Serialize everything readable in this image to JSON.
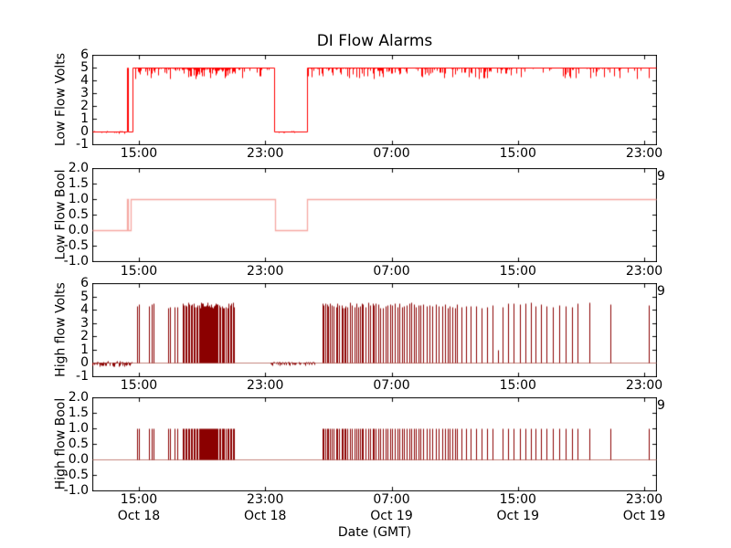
{
  "title": "DI Flow Alarms",
  "xlabel": "Date (GMT)",
  "clipped_date_char": "9",
  "x_tick_labels": [
    "15:00",
    "23:00",
    "07:00",
    "15:00",
    "23:00"
  ],
  "x_date_labels": [
    "Oct 18",
    "Oct 18",
    "Oct 19",
    "Oct 19",
    "Oct 19"
  ],
  "colors": {
    "red": "#ff0000",
    "light_red": "#f5a8a2",
    "dark_red": "#8b0000",
    "faded_dark_red": "#c4857e",
    "axis": "#000000"
  },
  "chart_data": [
    {
      "type": "line",
      "ylabel": "Low Flow Volts",
      "ylim": [
        -1,
        6
      ],
      "ytick_labels": [
        "6",
        "5",
        "4",
        "3",
        "2",
        "1",
        "0",
        "-1"
      ],
      "yticks": [
        6,
        5,
        4,
        3,
        2,
        1,
        0,
        -1
      ],
      "x_hours_range": [
        12.05,
        47.75
      ],
      "xticks_hours": [
        15,
        23,
        31,
        39,
        47
      ],
      "series": {
        "kind": "step",
        "color": "#ff0000",
        "lw": 1,
        "steps": [
          [
            12.05,
            0
          ],
          [
            14.25,
            5
          ],
          [
            14.33,
            0
          ],
          [
            14.62,
            5
          ],
          [
            23.55,
            0
          ],
          [
            25.62,
            5
          ]
        ],
        "end": 47.75,
        "zero_noise": [
          [
            12.1,
            14.2,
            0.14
          ],
          [
            23.68,
            25.5,
            0.09
          ]
        ],
        "high_noise": {
          "level": 5,
          "regions": [
            [
              14.72,
              17.8,
              0.5
            ],
            [
              17.8,
              21.1,
              0.85
            ],
            [
              21.1,
              23.45,
              0.5
            ],
            [
              25.72,
              38.6,
              0.5
            ],
            [
              38.6,
              47.6,
              0.24
            ]
          ],
          "max_depth": 0.8
        }
      }
    },
    {
      "type": "line",
      "ylabel": "Low Flow Bool",
      "ylim": [
        -1,
        2
      ],
      "ytick_labels": [
        "2.0",
        "1.5",
        "1.0",
        "0.5",
        "0.0",
        "-0.5",
        "-1.0"
      ],
      "yticks": [
        2,
        1.5,
        1,
        0.5,
        0,
        -0.5,
        -1
      ],
      "x_hours_range": [
        12.05,
        47.75
      ],
      "xticks_hours": [
        15,
        23,
        31,
        39,
        47
      ],
      "series": {
        "kind": "step",
        "color": "#f5a8a2",
        "lw": 1.3,
        "steps": [
          [
            12.05,
            0
          ],
          [
            14.25,
            1
          ],
          [
            14.33,
            0
          ],
          [
            14.5,
            1
          ],
          [
            23.6,
            0
          ],
          [
            25.62,
            1
          ]
        ],
        "end": 47.75
      }
    },
    {
      "type": "line",
      "ylabel": "High flow Volts",
      "ylim": [
        -1,
        6
      ],
      "ytick_labels": [
        "6",
        "5",
        "4",
        "3",
        "2",
        "1",
        "0",
        "-1"
      ],
      "yticks": [
        6,
        5,
        4,
        3,
        2,
        1,
        0,
        -1
      ],
      "x_hours_range": [
        12.05,
        47.75
      ],
      "xticks_hours": [
        15,
        23,
        31,
        39,
        47
      ],
      "series": {
        "kind": "spikes",
        "color": "#8b0000",
        "baseline_color": "#c4857e",
        "level": 0,
        "height_range": [
          4.15,
          4.55
        ],
        "baseline_noise": [
          [
            12.05,
            14.55,
            0.2
          ],
          [
            23.3,
            26.2,
            0.13
          ]
        ],
        "small_spikes": [
          [
            37.74,
            1.0
          ]
        ],
        "spikes": [
          14.89,
          15.0,
          15.63,
          15.8,
          15.93,
          16.85,
          16.95,
          17.25,
          17.45,
          17.78,
          17.85,
          17.95,
          18.02,
          18.1,
          18.2,
          18.28,
          18.38,
          18.45,
          18.55,
          18.62,
          18.72,
          18.8,
          18.86,
          18.92,
          18.98,
          19.04,
          19.1,
          19.16,
          19.22,
          19.28,
          19.34,
          19.4,
          19.46,
          19.52,
          19.58,
          19.64,
          19.7,
          19.76,
          19.82,
          19.88,
          19.94,
          20.0,
          20.08,
          20.16,
          20.24,
          20.32,
          20.4,
          20.5,
          20.6,
          20.7,
          20.78,
          20.86,
          20.95,
          21.03,
          26.63,
          26.7,
          26.82,
          26.9,
          27.0,
          27.08,
          27.2,
          27.35,
          27.5,
          27.58,
          27.7,
          27.82,
          27.9,
          28.0,
          28.1,
          28.22,
          28.35,
          28.5,
          28.65,
          28.8,
          28.9,
          29.0,
          29.1,
          29.2,
          29.35,
          29.5,
          29.65,
          29.8,
          29.9,
          30.0,
          30.15,
          30.3,
          30.45,
          30.6,
          30.75,
          30.9,
          31.05,
          31.2,
          31.35,
          31.5,
          31.65,
          31.8,
          31.95,
          32.1,
          32.25,
          32.4,
          32.55,
          32.7,
          32.85,
          33.0,
          33.2,
          33.4,
          33.6,
          33.8,
          34.0,
          34.2,
          34.4,
          34.55,
          34.7,
          34.85,
          35.0,
          35.14,
          35.4,
          35.7,
          36.0,
          36.35,
          36.7,
          37.05,
          37.4,
          38.05,
          38.4,
          38.75,
          39.1,
          39.45,
          39.8,
          40.1,
          40.45,
          40.8,
          41.2,
          41.6,
          42.0,
          42.45,
          42.8,
          43.53,
          44.86,
          47.3
        ]
      }
    },
    {
      "type": "line",
      "ylabel": "High flow Bool",
      "ylim": [
        -1,
        2
      ],
      "ytick_labels": [
        "2.0",
        "1.5",
        "1.0",
        "0.5",
        "0.0",
        "-0.5",
        "-1.0"
      ],
      "yticks": [
        2,
        1.5,
        1,
        0.5,
        0,
        -0.5,
        -1
      ],
      "x_hours_range": [
        12.05,
        47.75
      ],
      "xticks_hours": [
        15,
        23,
        31,
        39,
        47
      ],
      "series": {
        "kind": "spikes",
        "color": "#8b0000",
        "baseline_color": "#c4857e",
        "level": 0,
        "height_range": [
          1,
          1
        ],
        "baseline_noise": [],
        "small_spikes": [],
        "spikes": [
          14.89,
          15.0,
          15.63,
          15.8,
          15.93,
          16.85,
          16.95,
          17.25,
          17.45,
          17.78,
          17.85,
          17.95,
          18.02,
          18.1,
          18.2,
          18.28,
          18.38,
          18.45,
          18.55,
          18.62,
          18.72,
          18.8,
          18.86,
          18.92,
          18.98,
          19.04,
          19.1,
          19.16,
          19.22,
          19.28,
          19.34,
          19.4,
          19.46,
          19.52,
          19.58,
          19.64,
          19.7,
          19.76,
          19.82,
          19.88,
          19.94,
          20.0,
          20.08,
          20.16,
          20.24,
          20.32,
          20.4,
          20.5,
          20.6,
          20.7,
          20.78,
          20.86,
          20.95,
          21.03,
          26.63,
          26.7,
          26.82,
          26.9,
          27.0,
          27.08,
          27.2,
          27.35,
          27.5,
          27.58,
          27.7,
          27.82,
          27.9,
          28.0,
          28.1,
          28.22,
          28.35,
          28.5,
          28.65,
          28.8,
          28.9,
          29.0,
          29.1,
          29.2,
          29.35,
          29.5,
          29.65,
          29.8,
          29.9,
          30.0,
          30.15,
          30.3,
          30.45,
          30.6,
          30.75,
          30.9,
          31.05,
          31.2,
          31.35,
          31.5,
          31.65,
          31.8,
          31.95,
          32.1,
          32.25,
          32.4,
          32.55,
          32.7,
          32.85,
          33.0,
          33.2,
          33.4,
          33.6,
          33.8,
          34.0,
          34.2,
          34.4,
          34.55,
          34.7,
          34.85,
          35.0,
          35.14,
          35.4,
          35.7,
          36.0,
          36.35,
          36.7,
          37.05,
          37.4,
          38.05,
          38.4,
          38.75,
          39.1,
          39.45,
          39.8,
          40.1,
          40.45,
          40.8,
          41.2,
          41.6,
          42.0,
          42.45,
          42.8,
          43.53,
          44.86,
          47.3
        ]
      }
    }
  ]
}
